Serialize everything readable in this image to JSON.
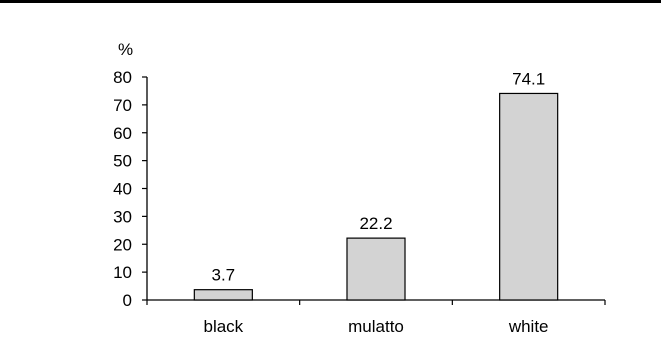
{
  "chart_data": {
    "type": "bar",
    "ylabel": "%",
    "ylim": [
      0,
      80
    ],
    "yticks": [
      0,
      10,
      20,
      30,
      40,
      50,
      60,
      70,
      80
    ],
    "categories": [
      "black",
      "mulatto",
      "white"
    ],
    "values": [
      3.7,
      22.2,
      74.1
    ],
    "data_labels": [
      "3.7",
      "22.2",
      "74.1"
    ],
    "grid": false,
    "legend": "none",
    "bar_color": "#d3d3d3",
    "bar_edge_color": "#000000"
  }
}
